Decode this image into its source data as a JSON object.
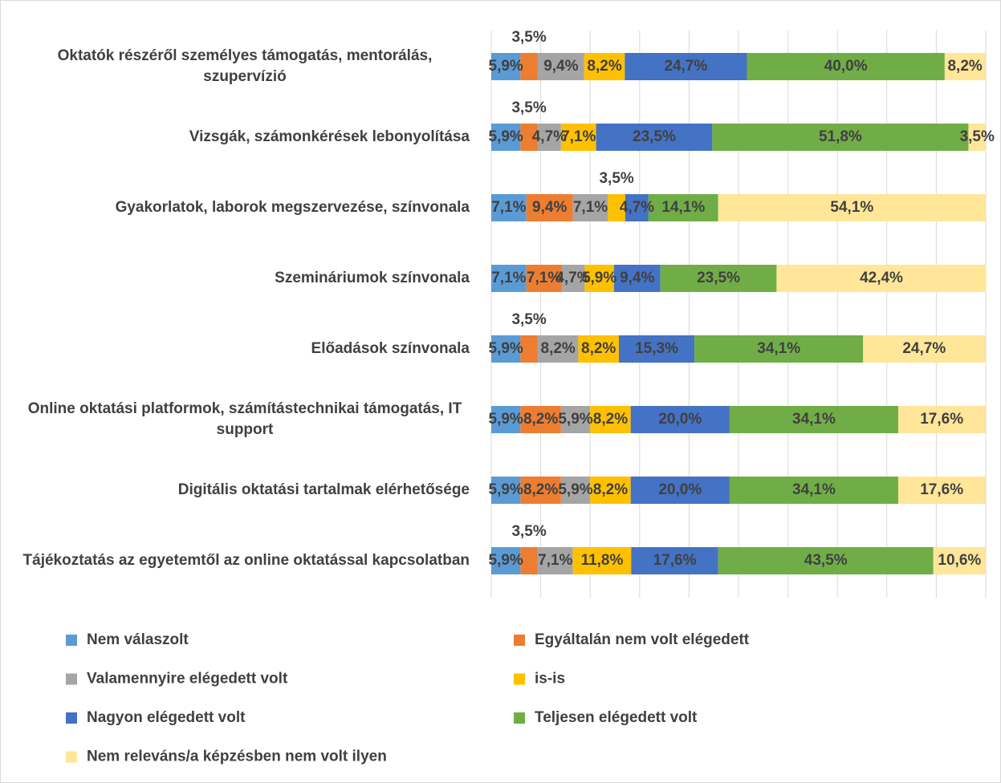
{
  "chart_data": {
    "type": "stacked-bar-horizontal",
    "categories": [
      "Oktatók részéről személyes támogatás, mentorálás, szupervízió",
      "Vizsgák, számonkérések lebonyolítása",
      "Gyakorlatok, laborok megszervezése, színvonala",
      "Szemináriumok színvonala",
      "Előadások színvonala",
      "Online oktatási platformok, számítástechnikai támogatás, IT support",
      "Digitális oktatási tartalmak elérhetősége",
      "Tájékoztatás az egyetemtől az online oktatással kapcsolatban"
    ],
    "series": [
      {
        "name": "Nem válaszolt",
        "color": "#5b9bd5",
        "values": [
          5.9,
          5.9,
          7.1,
          7.1,
          5.9,
          5.9,
          5.9,
          5.9
        ],
        "value_labels": [
          "5,9%",
          "5,9%",
          "7,1%",
          "7,1%",
          "5,9%",
          "5,9%",
          "5,9%",
          "5,9%"
        ]
      },
      {
        "name": "Egyáltalán nem volt elégedett",
        "color": "#ed7d31",
        "values": [
          3.5,
          3.5,
          9.4,
          7.1,
          3.5,
          8.2,
          8.2,
          3.5
        ],
        "value_labels": [
          "3,5%",
          "3,5%",
          "9,4%",
          "7,1%",
          "3,5%",
          "8,2%",
          "8,2%",
          "3,5%"
        ]
      },
      {
        "name": "Valamennyire elégedett volt",
        "color": "#a5a5a5",
        "values": [
          9.4,
          4.7,
          7.1,
          4.7,
          8.2,
          5.9,
          5.9,
          7.1
        ],
        "value_labels": [
          "9,4%",
          "4,7%",
          "7,1%",
          "4,7%",
          "8,2%",
          "5,9%",
          "5,9%",
          "7,1%"
        ]
      },
      {
        "name": "is-is",
        "color": "#ffc000",
        "values": [
          8.2,
          7.1,
          3.5,
          5.9,
          8.2,
          8.2,
          8.2,
          11.8
        ],
        "value_labels": [
          "8,2%",
          "7,1%",
          "3,5%",
          "5,9%",
          "8,2%",
          "8,2%",
          "8,2%",
          "11,8%"
        ]
      },
      {
        "name": "Nagyon elégedett volt",
        "color": "#4472c4",
        "values": [
          24.7,
          23.5,
          4.7,
          9.4,
          15.3,
          20.0,
          20.0,
          17.6
        ],
        "value_labels": [
          "24,7%",
          "23,5%",
          "4,7%",
          "9,4%",
          "15,3%",
          "20,0%",
          "20,0%",
          "17,6%"
        ]
      },
      {
        "name": "Teljesen elégedett volt",
        "color": "#70ad47",
        "values": [
          40.0,
          51.8,
          14.1,
          23.5,
          34.1,
          34.1,
          34.1,
          43.5
        ],
        "value_labels": [
          "40,0%",
          "51,8%",
          "14,1%",
          "23,5%",
          "34,1%",
          "34,1%",
          "34,1%",
          "43,5%"
        ]
      },
      {
        "name": "Nem releváns/a képzésben nem volt ilyen",
        "color": "#ffe699",
        "values": [
          8.2,
          3.5,
          54.1,
          42.4,
          24.7,
          17.6,
          17.6,
          10.6
        ],
        "value_labels": [
          "8,2%",
          "3,5%",
          "54,1%",
          "42,4%",
          "24,7%",
          "17,6%",
          "17,6%",
          "10,6%"
        ]
      }
    ],
    "xlim": [
      0,
      100
    ],
    "xticks": [
      0,
      10,
      20,
      30,
      40,
      50,
      60,
      70,
      80,
      90,
      100
    ],
    "grid": true,
    "legend": "bottom"
  }
}
